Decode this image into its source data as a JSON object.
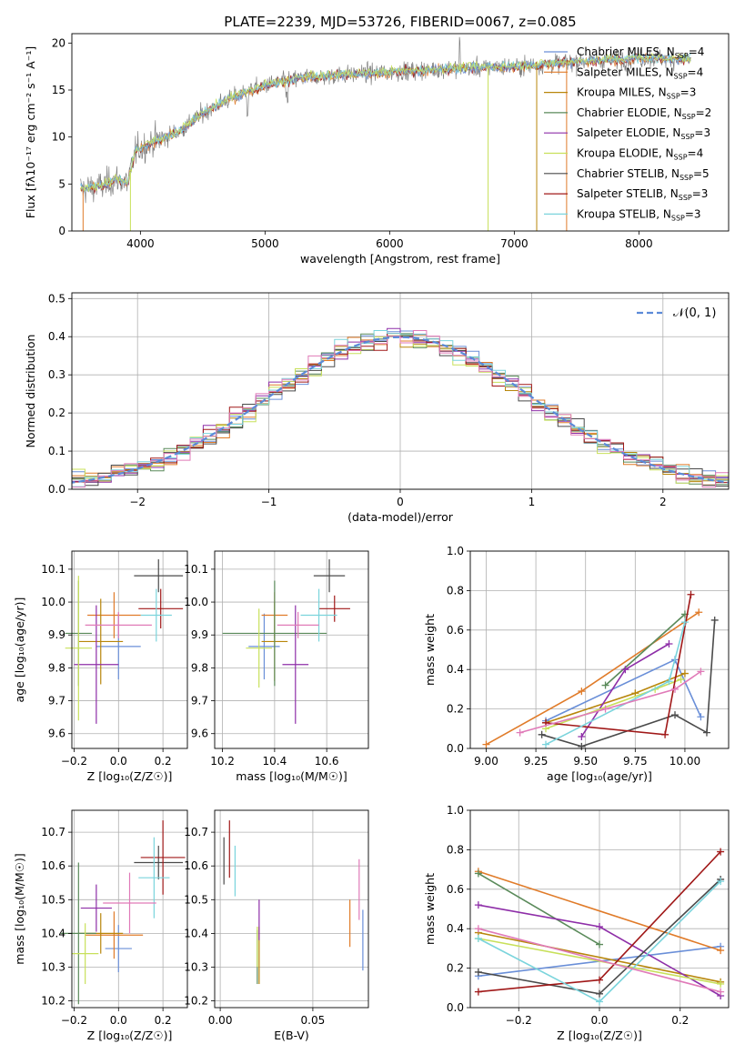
{
  "title": "PLATE=2239, MJD=53726, FIBERID=0067, z=0.085",
  "colors": [
    "#6a8fd8",
    "#e07b29",
    "#b8860b",
    "#5a8a5a",
    "#8e2ea8",
    "#c8e05a",
    "#4a4a4a",
    "#a01818",
    "#7ad4dc",
    "#e07ab8"
  ],
  "legend": [
    {
      "label": "Chabrier MILES, N",
      "sub": "SSP",
      "suffix": "=4",
      "color": "#6a8fd8"
    },
    {
      "label": "Salpeter MILES, N",
      "sub": "SSP",
      "suffix": "=4",
      "color": "#e07b29"
    },
    {
      "label": "Kroupa MILES, N",
      "sub": "SSP",
      "suffix": "=3",
      "color": "#b8860b"
    },
    {
      "label": "Chabrier ELODIE, N",
      "sub": "SSP",
      "suffix": "=2",
      "color": "#5a8a5a"
    },
    {
      "label": "Salpeter ELODIE, N",
      "sub": "SSP",
      "suffix": "=3",
      "color": "#8e2ea8"
    },
    {
      "label": "Kroupa ELODIE, N",
      "sub": "SSP",
      "suffix": "=4",
      "color": "#c8e05a"
    },
    {
      "label": "Chabrier STELIB, N",
      "sub": "SSP",
      "suffix": "=5",
      "color": "#4a4a4a"
    },
    {
      "label": "Salpeter STELIB, N",
      "sub": "SSP",
      "suffix": "=3",
      "color": "#a01818"
    },
    {
      "label": "Kroupa STELIB, N",
      "sub": "SSP",
      "suffix": "=3",
      "color": "#7ad4dc"
    }
  ],
  "chart_data": [
    {
      "id": "spectrum",
      "type": "line",
      "xlabel": "wavelength [Angstrom, rest frame]",
      "ylabel": "Flux [fλ10⁻¹⁷ erg cm⁻² s⁻¹ A⁻¹]",
      "xlim": [
        3450,
        8720
      ],
      "ylim": [
        0,
        21
      ],
      "xticks": [
        4000,
        5000,
        6000,
        7000,
        8000
      ],
      "yticks": [
        0,
        5,
        10,
        15,
        20
      ],
      "anchors": [
        [
          3550,
          4.5
        ],
        [
          3700,
          4.8
        ],
        [
          3800,
          5.5
        ],
        [
          3900,
          5.2
        ],
        [
          3960,
          8.5
        ],
        [
          4100,
          9.5
        ],
        [
          4300,
          10.5
        ],
        [
          4500,
          12.5
        ],
        [
          4700,
          14.0
        ],
        [
          5000,
          15.5
        ],
        [
          5300,
          16.3
        ],
        [
          5600,
          16.6
        ],
        [
          6000,
          16.9
        ],
        [
          6500,
          17.3
        ],
        [
          7000,
          17.5
        ],
        [
          7500,
          18.0
        ],
        [
          8000,
          18.4
        ],
        [
          8400,
          18.3
        ]
      ],
      "xstart": 3520,
      "xend": 8420
    },
    {
      "id": "residuals",
      "type": "histogram",
      "xlabel": "(data-model)/error",
      "ylabel": "Normed distribution",
      "xlim": [
        -2.5,
        2.5
      ],
      "ylim": [
        0,
        0.515
      ],
      "xticks": [
        -2,
        -1,
        0,
        1,
        2
      ],
      "yticks": [
        0,
        0.1,
        0.2,
        0.3,
        0.4,
        0.5
      ],
      "ref_label": "𝒩(0, 1)",
      "ref_color": "#5b8ad8",
      "bin_width": 0.1
    },
    {
      "id": "z-age",
      "type": "errorbar",
      "xlabel": "Z [log₁₀(Z/Z☉)]",
      "ylabel": "age  [log₁₀(age/yr)]",
      "xlim": [
        -0.21,
        0.31
      ],
      "ylim": [
        9.555,
        10.155
      ],
      "xticks": [
        -0.2,
        0.0,
        0.2
      ],
      "yticks": [
        9.6,
        9.7,
        9.8,
        9.9,
        10.0,
        10.1
      ],
      "points": [
        {
          "x": 0.0,
          "y": 9.865,
          "xerr": 0.1,
          "yerr": 0.1
        },
        {
          "x": -0.02,
          "y": 9.96,
          "xerr": 0.12,
          "yerr": 0.07
        },
        {
          "x": -0.08,
          "y": 9.88,
          "xerr": 0.1,
          "yerr": 0.13
        },
        {
          "x": -0.18,
          "y": 9.905,
          "xerr": 0.06,
          "yerr": 0.16
        },
        {
          "x": -0.1,
          "y": 9.81,
          "xerr": 0.1,
          "yerr": 0.18
        },
        {
          "x": -0.18,
          "y": 9.86,
          "xerr": 0.06,
          "yerr": 0.22
        },
        {
          "x": 0.18,
          "y": 10.08,
          "xerr": 0.11,
          "yerr": 0.05
        },
        {
          "x": 0.19,
          "y": 9.98,
          "xerr": 0.1,
          "yerr": 0.06
        },
        {
          "x": 0.17,
          "y": 9.96,
          "xerr": 0.07,
          "yerr": 0.08
        },
        {
          "x": 0.0,
          "y": 9.93,
          "xerr": 0.15,
          "yerr": 0.04
        }
      ]
    },
    {
      "id": "mass-age",
      "type": "errorbar",
      "xlabel": "mass [log₁₀(M/M☉)]",
      "ylabel": "",
      "xlim": [
        10.17,
        10.76
      ],
      "ylim": [
        9.555,
        10.155
      ],
      "xticks": [
        10.2,
        10.4,
        10.6
      ],
      "yticks": [
        9.6,
        9.7,
        9.8,
        9.9,
        10.0,
        10.1
      ],
      "points": [
        {
          "x": 10.36,
          "y": 9.865,
          "xerr": 0.06,
          "yerr": 0.1
        },
        {
          "x": 10.4,
          "y": 9.96,
          "xerr": 0.05,
          "yerr": 0.07
        },
        {
          "x": 10.4,
          "y": 9.88,
          "xerr": 0.05,
          "yerr": 0.12
        },
        {
          "x": 10.4,
          "y": 9.905,
          "xerr": 0.2,
          "yerr": 0.16
        },
        {
          "x": 10.48,
          "y": 9.81,
          "xerr": 0.05,
          "yerr": 0.18
        },
        {
          "x": 10.34,
          "y": 9.86,
          "xerr": 0.05,
          "yerr": 0.12
        },
        {
          "x": 10.61,
          "y": 10.08,
          "xerr": 0.06,
          "yerr": 0.05
        },
        {
          "x": 10.63,
          "y": 9.98,
          "xerr": 0.06,
          "yerr": 0.04
        },
        {
          "x": 10.57,
          "y": 9.96,
          "xerr": 0.07,
          "yerr": 0.08
        },
        {
          "x": 10.49,
          "y": 9.93,
          "xerr": 0.08,
          "yerr": 0.04
        }
      ]
    },
    {
      "id": "age-weight",
      "type": "line",
      "xlabel": "age  [log₁₀(age/yr)]",
      "ylabel": "mass weight",
      "xlim": [
        8.92,
        10.22
      ],
      "ylim": [
        0,
        1
      ],
      "xticks": [
        9.0,
        9.25,
        9.5,
        9.75,
        10.0
      ],
      "yticks": [
        0,
        0.2,
        0.4,
        0.6,
        0.8,
        1.0
      ],
      "series": [
        {
          "x": [
            9.3,
            9.95,
            10.08
          ],
          "y": [
            0.14,
            0.45,
            0.16
          ]
        },
        {
          "x": [
            9.0,
            9.48,
            10.07
          ],
          "y": [
            0.02,
            0.29,
            0.69
          ]
        },
        {
          "x": [
            9.3,
            9.75,
            10.0
          ],
          "y": [
            0.13,
            0.28,
            0.38
          ]
        },
        {
          "x": [
            9.6,
            10.0
          ],
          "y": [
            0.32,
            0.68
          ]
        },
        {
          "x": [
            9.48,
            9.7,
            9.92
          ],
          "y": [
            0.06,
            0.4,
            0.53
          ]
        },
        {
          "x": [
            9.3,
            9.85,
            9.98
          ],
          "y": [
            0.1,
            0.3,
            0.35
          ]
        },
        {
          "x": [
            9.28,
            9.48,
            9.95,
            10.11,
            10.15
          ],
          "y": [
            0.07,
            0.01,
            0.17,
            0.08,
            0.65
          ]
        },
        {
          "x": [
            9.3,
            9.9,
            10.03
          ],
          "y": [
            0.13,
            0.07,
            0.78
          ]
        },
        {
          "x": [
            9.3,
            9.92,
            10.0
          ],
          "y": [
            0.02,
            0.34,
            0.64
          ]
        },
        {
          "x": [
            9.17,
            9.6,
            9.95,
            10.08
          ],
          "y": [
            0.08,
            0.2,
            0.3,
            0.39
          ]
        }
      ]
    },
    {
      "id": "z-mass",
      "type": "errorbar",
      "xlabel": "Z [log₁₀(Z/Z☉)]",
      "ylabel": "mass [log₁₀(M/M☉)]",
      "xlim": [
        -0.21,
        0.31
      ],
      "ylim": [
        10.18,
        10.765
      ],
      "xticks": [
        -0.2,
        0.0,
        0.2
      ],
      "yticks": [
        10.2,
        10.3,
        10.4,
        10.5,
        10.6,
        10.7
      ],
      "points": [
        {
          "x": 0.0,
          "y": 10.355,
          "xerr": 0.06,
          "yerr": 0.07
        },
        {
          "x": -0.02,
          "y": 10.395,
          "xerr": 0.13,
          "yerr": 0.07
        },
        {
          "x": -0.08,
          "y": 10.4,
          "xerr": 0.1,
          "yerr": 0.06
        },
        {
          "x": -0.18,
          "y": 10.4,
          "xerr": 0.08,
          "yerr": 0.21
        },
        {
          "x": -0.1,
          "y": 10.475,
          "xerr": 0.07,
          "yerr": 0.07
        },
        {
          "x": -0.15,
          "y": 10.34,
          "xerr": 0.06,
          "yerr": 0.09
        },
        {
          "x": 0.18,
          "y": 10.61,
          "xerr": 0.11,
          "yerr": 0.05
        },
        {
          "x": 0.2,
          "y": 10.625,
          "xerr": 0.1,
          "yerr": 0.11
        },
        {
          "x": 0.16,
          "y": 10.565,
          "xerr": 0.07,
          "yerr": 0.12
        },
        {
          "x": 0.05,
          "y": 10.49,
          "xerr": 0.12,
          "yerr": 0.09
        }
      ]
    },
    {
      "id": "ebv-mass",
      "type": "errorbar",
      "xlabel": "E(B-V)",
      "ylabel": "",
      "xlim": [
        -0.003,
        0.08
      ],
      "ylim": [
        10.18,
        10.765
      ],
      "xticks": [
        0.0,
        0.05
      ],
      "yticks": [
        10.2,
        10.3,
        10.4,
        10.5,
        10.6,
        10.7
      ],
      "points": [
        {
          "x": 0.077,
          "y": 10.38,
          "xerr": 0,
          "yerr": 0.09
        },
        {
          "x": 0.07,
          "y": 10.43,
          "xerr": 0,
          "yerr": 0.07
        },
        {
          "x": 0.021,
          "y": 10.335,
          "xerr": 0,
          "yerr": 0.085
        },
        {
          "x": 0.02,
          "y": 10.33,
          "xerr": 0,
          "yerr": 0.08
        },
        {
          "x": 0.021,
          "y": 10.44,
          "xerr": 0,
          "yerr": 0.06
        },
        {
          "x": 0.02,
          "y": 10.36,
          "xerr": 0,
          "yerr": 0.06
        },
        {
          "x": 0.002,
          "y": 10.615,
          "xerr": 0,
          "yerr": 0.07
        },
        {
          "x": 0.005,
          "y": 10.65,
          "xerr": 0,
          "yerr": 0.085
        },
        {
          "x": 0.008,
          "y": 10.585,
          "xerr": 0,
          "yerr": 0.075
        },
        {
          "x": 0.075,
          "y": 10.53,
          "xerr": 0,
          "yerr": 0.09
        }
      ]
    },
    {
      "id": "z-weight",
      "type": "line",
      "xlabel": "Z [log₁₀(Z/Z☉)]",
      "ylabel": "mass weight",
      "xlim": [
        -0.32,
        0.32
      ],
      "ylim": [
        0,
        1
      ],
      "xticks": [
        -0.2,
        0.0,
        0.2
      ],
      "yticks": [
        0,
        0.2,
        0.4,
        0.6,
        0.8,
        1.0
      ],
      "series": [
        {
          "x": [
            -0.3,
            0.3
          ],
          "y": [
            0.16,
            0.31
          ]
        },
        {
          "x": [
            -0.3,
            0.3
          ],
          "y": [
            0.69,
            0.29
          ]
        },
        {
          "x": [
            -0.3,
            0.3
          ],
          "y": [
            0.38,
            0.13
          ]
        },
        {
          "x": [
            -0.3,
            0.0
          ],
          "y": [
            0.68,
            0.32
          ]
        },
        {
          "x": [
            -0.3,
            0.0,
            0.3
          ],
          "y": [
            0.52,
            0.41,
            0.06
          ]
        },
        {
          "x": [
            -0.3,
            0.3
          ],
          "y": [
            0.35,
            0.12
          ]
        },
        {
          "x": [
            -0.3,
            0.0,
            0.3
          ],
          "y": [
            0.18,
            0.07,
            0.65
          ]
        },
        {
          "x": [
            -0.3,
            0.0,
            0.3
          ],
          "y": [
            0.08,
            0.14,
            0.79
          ]
        },
        {
          "x": [
            -0.3,
            0.0,
            0.3
          ],
          "y": [
            0.35,
            0.03,
            0.64
          ]
        },
        {
          "x": [
            -0.3,
            0.3
          ],
          "y": [
            0.4,
            0.08
          ]
        }
      ]
    }
  ]
}
